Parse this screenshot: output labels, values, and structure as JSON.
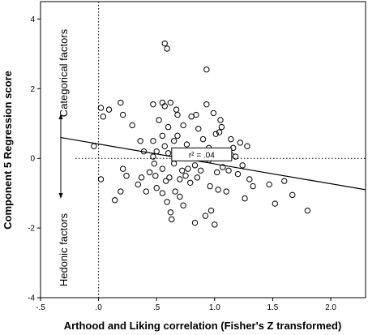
{
  "chart_data": {
    "type": "scatter",
    "xlabel": "Arthood and Liking correlation (Fisher's Z transformed)",
    "ylabel": "Component 5 Regression score",
    "xlim": [
      -0.5,
      2.3
    ],
    "ylim": [
      -4,
      4.5
    ],
    "x_ticks": [
      -0.5,
      0.0,
      0.5,
      1.0,
      1.5,
      2.0
    ],
    "x_tick_labels": [
      "-.5",
      ".0",
      ".5",
      "1.0",
      "1.5",
      "2.0"
    ],
    "y_ticks": [
      -4,
      -2,
      0,
      2,
      4
    ],
    "y_tick_labels": [
      "-4",
      "-2",
      "0",
      "2",
      "4"
    ],
    "reference_lines": {
      "x": 0.0,
      "y": 0.0,
      "style": "dotted"
    },
    "regression_line": {
      "x": [
        -0.33,
        2.3
      ],
      "y": [
        0.6,
        -0.9
      ]
    },
    "r2_label": "r² = .04",
    "annotations": {
      "upper": "Categorical factors",
      "lower": "Hedonic factors"
    },
    "grid": false,
    "points": [
      [
        -0.04,
        0.35
      ],
      [
        0.02,
        1.45
      ],
      [
        0.04,
        1.2
      ],
      [
        0.02,
        -0.6
      ],
      [
        0.09,
        1.4
      ],
      [
        0.14,
        -1.2
      ],
      [
        0.19,
        1.6
      ],
      [
        0.19,
        -0.95
      ],
      [
        0.21,
        1.25
      ],
      [
        0.24,
        -0.5
      ],
      [
        0.29,
        0.95
      ],
      [
        0.34,
        -0.75
      ],
      [
        0.37,
        -0.55
      ],
      [
        0.39,
        0.2
      ],
      [
        0.41,
        -0.95
      ],
      [
        0.44,
        -0.4
      ],
      [
        0.47,
        1.55
      ],
      [
        0.47,
        0.5
      ],
      [
        0.47,
        0.05
      ],
      [
        0.49,
        -0.5
      ],
      [
        0.5,
        0.2
      ],
      [
        0.5,
        -0.85
      ],
      [
        0.52,
        1.1
      ],
      [
        0.55,
        1.6
      ],
      [
        0.55,
        0.65
      ],
      [
        0.55,
        -0.3
      ],
      [
        0.55,
        -1.0
      ],
      [
        0.57,
        1.5
      ],
      [
        0.57,
        0.35
      ],
      [
        0.58,
        -0.65
      ],
      [
        0.59,
        -1.25
      ],
      [
        0.6,
        0.9
      ],
      [
        0.6,
        0.15
      ],
      [
        0.61,
        -0.55
      ],
      [
        0.62,
        1.6
      ],
      [
        0.62,
        -1.55
      ],
      [
        0.63,
        -1.75
      ],
      [
        0.65,
        0.5
      ],
      [
        0.65,
        -0.15
      ],
      [
        0.66,
        -0.95
      ],
      [
        0.67,
        1.4
      ],
      [
        0.68,
        0.65
      ],
      [
        0.7,
        -0.6
      ],
      [
        0.7,
        -1.1
      ],
      [
        0.72,
        -0.35
      ],
      [
        0.73,
        0.95
      ],
      [
        0.73,
        -1.35
      ],
      [
        0.74,
        0.05
      ],
      [
        0.75,
        -0.5
      ],
      [
        0.76,
        0.4
      ],
      [
        0.77,
        -0.3
      ],
      [
        0.79,
        -0.7
      ],
      [
        0.8,
        1.2
      ],
      [
        0.82,
        0.15
      ],
      [
        0.83,
        -0.2
      ],
      [
        0.84,
        1.25
      ],
      [
        0.85,
        -0.55
      ],
      [
        0.86,
        0.85
      ],
      [
        0.88,
        -0.35
      ],
      [
        0.9,
        0.55
      ],
      [
        0.92,
        -1.65
      ],
      [
        0.93,
        1.55
      ],
      [
        0.95,
        0.3
      ],
      [
        0.95,
        -0.05
      ],
      [
        0.96,
        -0.8
      ],
      [
        0.97,
        -1.5
      ],
      [
        0.99,
        1.3
      ],
      [
        1.0,
        0.15
      ],
      [
        1.01,
        0.7
      ],
      [
        1.02,
        -0.4
      ],
      [
        1.03,
        -0.9
      ],
      [
        1.04,
        0.75
      ],
      [
        1.05,
        1.1
      ],
      [
        1.06,
        0.9
      ],
      [
        1.07,
        -0.25
      ],
      [
        1.08,
        0.2
      ],
      [
        1.1,
        -0.95
      ],
      [
        1.12,
        -0.35
      ],
      [
        1.14,
        0.55
      ],
      [
        1.16,
        0.3
      ],
      [
        1.18,
        0.05
      ],
      [
        1.2,
        -0.45
      ],
      [
        1.22,
        0.45
      ],
      [
        1.24,
        -0.2
      ],
      [
        1.26,
        -1.15
      ],
      [
        1.28,
        0.35
      ],
      [
        1.3,
        -0.6
      ],
      [
        1.33,
        -0.8
      ],
      [
        1.47,
        -0.75
      ],
      [
        1.52,
        -1.3
      ],
      [
        1.6,
        -0.65
      ],
      [
        1.67,
        -1.05
      ],
      [
        1.8,
        -1.5
      ],
      [
        0.93,
        2.55
      ],
      [
        0.59,
        3.15
      ],
      [
        0.57,
        3.3
      ],
      [
        0.83,
        -1.85
      ],
      [
        1.0,
        -1.9
      ],
      [
        0.21,
        -0.3
      ],
      [
        0.36,
        0.5
      ],
      [
        0.75,
        0.1
      ],
      [
        1.14,
        0.1
      ],
      [
        0.68,
        1.25
      ],
      [
        0.48,
        -0.15
      ]
    ]
  }
}
